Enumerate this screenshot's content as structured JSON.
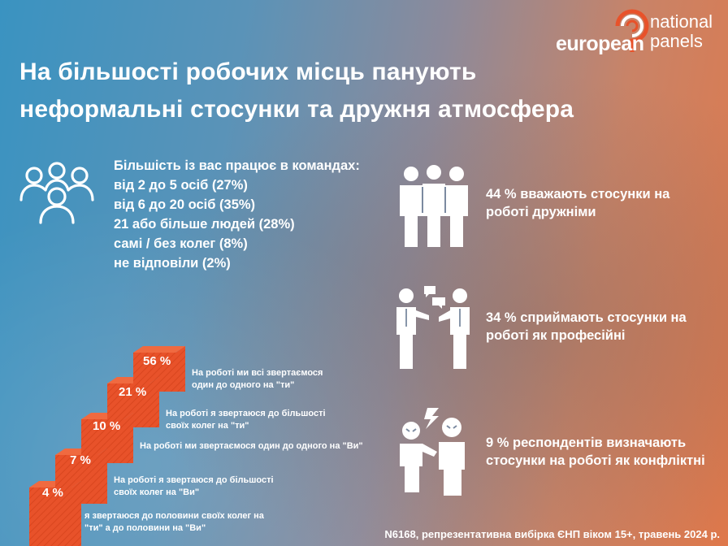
{
  "logo": {
    "european": "european",
    "national": "national",
    "panels": "panels"
  },
  "title": {
    "line1": "На більшості робочих місць панують",
    "line2": "неформальні стосунки та дружня атмосфера"
  },
  "teams": {
    "heading": "Більшість із вас працює в командах:",
    "items": [
      "від 2 до 5 осіб (27%)",
      "від 6 до 20 осіб (35%)",
      "21 або більше людей (28%)",
      "самі / без колег (8%)",
      "не відповіли (2%)"
    ]
  },
  "stats": [
    {
      "icon": "friends-hugging-icon",
      "text": "44 % вважають стосунки на роботі дружніми"
    },
    {
      "icon": "professionals-talking-icon",
      "text": "34 % сприймають стосунки на роботі як професійні"
    },
    {
      "icon": "conflict-icon",
      "text": "9 % респондентів визначають стосунки на роботі як конфліктні"
    }
  ],
  "steps": [
    {
      "value": "4 %",
      "desc_line1": "я звертаюся до половини своїх колег на",
      "desc_line2": "\"ти\" а до половини на \"Ви\""
    },
    {
      "value": "7 %",
      "desc_line1": "На роботі я звертаюся до більшості",
      "desc_line2": "своїх колег на \"Ви\""
    },
    {
      "value": "10 %",
      "desc_line1": "На роботі ми звертаємося один до одного на \"Ви\"",
      "desc_line2": ""
    },
    {
      "value": "21 %",
      "desc_line1": "На роботі я звертаюся до більшості",
      "desc_line2": "своїх колег на \"ти\""
    },
    {
      "value": "56 %",
      "desc_line1": "На роботі ми всі звертаємося",
      "desc_line2": "один до одного на \"ти\""
    }
  ],
  "footnote": "N6168, репрезентативна вибірка ЄНП віком 15+, травень 2024 р.",
  "colors": {
    "accent_orange": "#e8522a",
    "stair_top": "#f0643a",
    "stair_side": "#c9411c"
  }
}
